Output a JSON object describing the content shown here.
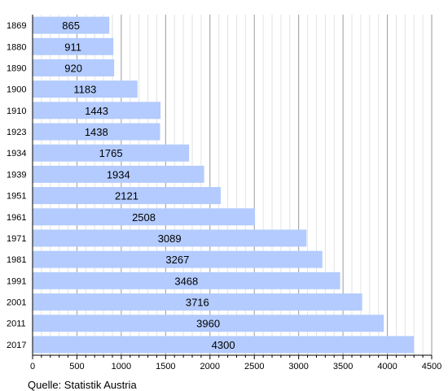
{
  "chart_data": {
    "type": "bar",
    "orientation": "horizontal",
    "categories": [
      "1869",
      "1880",
      "1890",
      "1900",
      "1910",
      "1923",
      "1934",
      "1939",
      "1951",
      "1961",
      "1971",
      "1981",
      "1991",
      "2001",
      "2011",
      "2017"
    ],
    "values": [
      865,
      911,
      920,
      1183,
      1443,
      1438,
      1765,
      1934,
      2121,
      2508,
      3089,
      3267,
      3468,
      3716,
      3960,
      4300
    ],
    "xlim": [
      0,
      4500
    ],
    "x_ticks": [
      "0",
      "500",
      "1000",
      "1500",
      "2000",
      "2500",
      "3000",
      "3500",
      "4000",
      "4500"
    ],
    "x_tick_values": [
      0,
      500,
      1000,
      1500,
      2000,
      2500,
      3000,
      3500,
      4000,
      4500
    ],
    "minor_grid_step": 100,
    "grid": true,
    "title": "",
    "xlabel": "",
    "ylabel": "",
    "bar_color": "#b3cbfe",
    "source": "Quelle: Statistik Austria"
  }
}
